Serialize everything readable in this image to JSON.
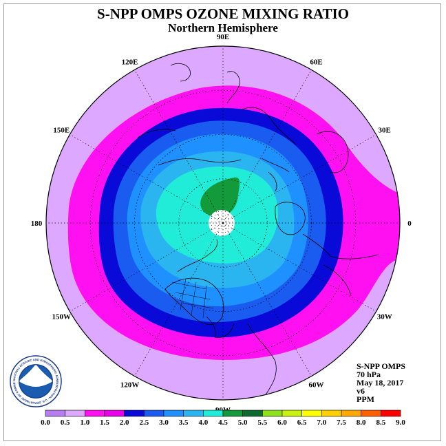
{
  "title": "S-NPP OMPS OZONE MIXING RATIO",
  "subtitle": "Northern Hemisphere",
  "longitude_labels": [
    {
      "text": "90E",
      "angle": 90
    },
    {
      "text": "60E",
      "angle": 60
    },
    {
      "text": "30E",
      "angle": 30
    },
    {
      "text": "0",
      "angle": 0
    },
    {
      "text": "30W",
      "angle": -30
    },
    {
      "text": "60W",
      "angle": -60
    },
    {
      "text": "90W",
      "angle": -90
    },
    {
      "text": "120W",
      "angle": -120
    },
    {
      "text": "150W",
      "angle": -150
    },
    {
      "text": "180",
      "angle": 180
    },
    {
      "text": "150E",
      "angle": 150
    },
    {
      "text": "120E",
      "angle": 120
    }
  ],
  "info": {
    "instrument": "S-NPP OMPS",
    "pressure": "70 hPa",
    "date": "May 18, 2017",
    "version": "v6",
    "units": "PPM"
  },
  "logo": {
    "text": "NOAA",
    "ring_text": "NATIONAL OCEANIC AND ATMOSPHERIC ADMINISTRATION · U.S. DEPARTMENT OF COMMERCE"
  },
  "colorbar": {
    "ticks": [
      "0.0",
      "0.5",
      "1.0",
      "1.5",
      "2.0",
      "2.5",
      "3.0",
      "3.5",
      "4.0",
      "4.5",
      "5.0",
      "5.5",
      "6.0",
      "6.5",
      "7.0",
      "7.5",
      "8.0",
      "8.5",
      "9.0"
    ],
    "colors": [
      "#b77ef0",
      "#dda8ff",
      "#ff10f0",
      "#e800e8",
      "#0a0ad8",
      "#1a5cf0",
      "#1e90ff",
      "#2ab4f0",
      "#20ecd8",
      "#139a3a",
      "#0d6a30",
      "#90e020",
      "#c8f010",
      "#ffff00",
      "#ffd000",
      "#ffa800",
      "#ff6000",
      "#ff0000",
      "#a0522d"
    ]
  },
  "ozone_levels": [
    {
      "level": "1.0-1.5",
      "color": "#ff10f0"
    },
    {
      "level": "1.5-2.0",
      "color": "#0a0ad8"
    },
    {
      "level": "2.0-2.5",
      "color": "#1a5cf0"
    },
    {
      "level": "2.5-3.0",
      "color": "#1e90ff"
    },
    {
      "level": "3.0-3.5",
      "color": "#2ab4f0"
    },
    {
      "level": "3.5-4.0",
      "color": "#20ecd8"
    },
    {
      "level": "4.0-4.5",
      "color": "#139a3a"
    }
  ],
  "background_color": "#dda8ff"
}
